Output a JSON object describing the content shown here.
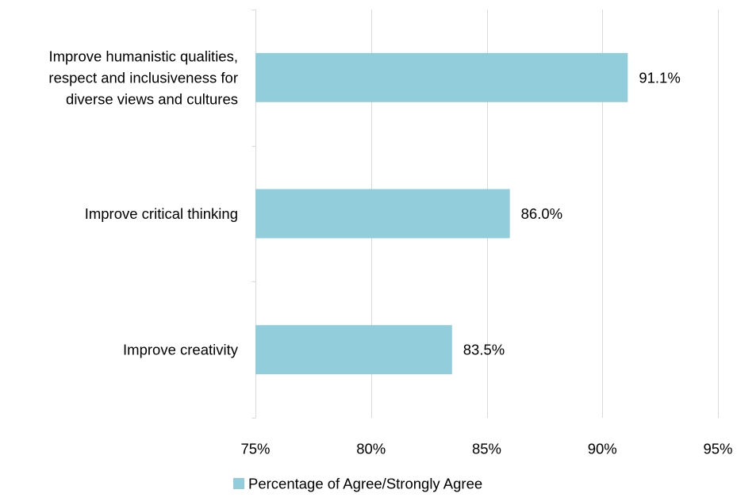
{
  "chart_data": {
    "type": "bar",
    "orientation": "horizontal",
    "categories": [
      "Improve humanistic qualities, respect and inclusiveness for diverse views and cultures",
      "Improve critical thinking",
      "Improve creativity"
    ],
    "category_label_lines": [
      [
        "Improve humanistic qualities,",
        "respect and inclusiveness for",
        "diverse views and cultures"
      ],
      [
        "Improve critical thinking"
      ],
      [
        "Improve creativity"
      ]
    ],
    "series": [
      {
        "name": "Percentage of Agree/Strongly Agree",
        "values": [
          91.1,
          86.0,
          83.5
        ],
        "data_labels": [
          "91.1%",
          "86.0%",
          "83.5%"
        ],
        "color": "#92cddc"
      }
    ],
    "xlim": [
      75,
      95
    ],
    "x_ticks": [
      75,
      80,
      85,
      90,
      95
    ],
    "x_tick_labels": [
      "75%",
      "80%",
      "85%",
      "90%",
      "95%"
    ],
    "grid": "vertical",
    "legend_position": "bottom",
    "gridline_color": "#d9d9d9"
  }
}
